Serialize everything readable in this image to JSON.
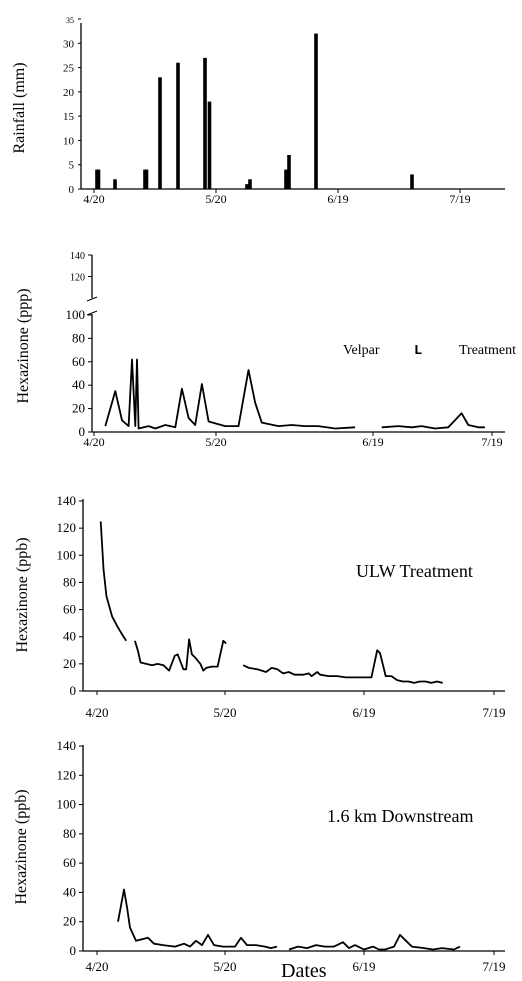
{
  "chart_data": [
    {
      "type": "bar",
      "ylabel": "Rainfall (mm)",
      "xticks": [
        "4/20",
        "5/20",
        "6/19",
        "7/19"
      ],
      "ylim": [
        0,
        35
      ],
      "yticks": [
        0,
        5,
        10,
        15,
        20,
        25,
        30,
        35
      ],
      "series": [
        {
          "values": [
            {
              "x": 1,
              "y": 4
            },
            {
              "x": 1.5,
              "y": 4
            },
            {
              "x": 7,
              "y": 2
            },
            {
              "x": 17,
              "y": 4
            },
            {
              "x": 17.5,
              "y": 4
            },
            {
              "x": 22,
              "y": 23
            },
            {
              "x": 28,
              "y": 26
            },
            {
              "x": 37,
              "y": 27
            },
            {
              "x": 38.5,
              "y": 18
            },
            {
              "x": 51,
              "y": 1
            },
            {
              "x": 52,
              "y": 2
            },
            {
              "x": 64,
              "y": 4
            },
            {
              "x": 65,
              "y": 7
            },
            {
              "x": 74,
              "y": 32
            },
            {
              "x": 106,
              "y": 3
            }
          ]
        }
      ]
    },
    {
      "type": "line",
      "ylabel": "Hexazinone (ppb)",
      "ylabel_display": "Hexazinone (ppp)",
      "annotation": [
        "Velpar",
        "L",
        "Treatment"
      ],
      "xticks": [
        "4/20",
        "5/20",
        "6/19",
        "7/19"
      ],
      "ylim": [
        0,
        140
      ],
      "yticks_lower": [
        0,
        20,
        40,
        60,
        80,
        100
      ],
      "yticks_upper": [
        120,
        140
      ],
      "series": [
        {
          "segments": [
            [
              [
                4,
                5
              ],
              [
                7,
                35
              ],
              [
                9,
                10
              ],
              [
                11,
                5
              ],
              [
                12,
                62
              ],
              [
                13,
                5
              ],
              [
                13.5,
                62
              ],
              [
                14,
                3
              ],
              [
                17,
                5
              ],
              [
                19,
                3
              ],
              [
                22,
                6
              ],
              [
                25,
                4
              ],
              [
                27,
                37
              ],
              [
                29,
                12
              ],
              [
                31,
                6
              ],
              [
                33,
                41
              ],
              [
                35,
                9
              ],
              [
                40,
                5
              ],
              [
                44,
                5
              ],
              [
                47,
                53
              ],
              [
                49,
                25
              ],
              [
                51,
                8
              ],
              [
                56,
                5
              ],
              [
                60,
                6
              ],
              [
                64,
                5
              ],
              [
                68,
                5
              ],
              [
                73,
                3
              ],
              [
                79,
                4
              ]
            ],
            [
              [
                87,
                4
              ],
              [
                92,
                5
              ],
              [
                96,
                4
              ],
              [
                99,
                5
              ],
              [
                103,
                3
              ],
              [
                107,
                4
              ],
              [
                111,
                16
              ],
              [
                113,
                6
              ],
              [
                116,
                4
              ],
              [
                118,
                4
              ]
            ]
          ]
        }
      ]
    },
    {
      "type": "line",
      "ylabel": "Hexazinone (ppb)",
      "annotation": "ULW Treatment",
      "xticks": [
        "4/20",
        "5/20",
        "6/19",
        "7/19"
      ],
      "ylim": [
        0,
        140
      ],
      "yticks": [
        0,
        20,
        40,
        60,
        80,
        100,
        120,
        140
      ],
      "series": [
        {
          "segments": [
            [
              [
                2,
                125
              ],
              [
                3,
                90
              ],
              [
                4,
                70
              ],
              [
                6,
                55
              ],
              [
                8,
                47
              ],
              [
                10,
                40
              ],
              [
                11,
                37
              ]
            ],
            [
              [
                14,
                37
              ],
              [
                15,
                30
              ],
              [
                16,
                21
              ],
              [
                18,
                20
              ],
              [
                20,
                19
              ],
              [
                22,
                20
              ],
              [
                24,
                19
              ],
              [
                26,
                15
              ],
              [
                28,
                26
              ],
              [
                29,
                27
              ],
              [
                31,
                16
              ],
              [
                32,
                16
              ],
              [
                33,
                38
              ],
              [
                34,
                27
              ],
              [
                35,
                25
              ],
              [
                37,
                20
              ],
              [
                38,
                15
              ],
              [
                39,
                17
              ],
              [
                41,
                18
              ],
              [
                43,
                18
              ],
              [
                45,
                37
              ],
              [
                46,
                35
              ]
            ],
            [
              [
                52,
                19
              ],
              [
                54,
                17
              ],
              [
                57,
                16
              ],
              [
                60,
                14
              ],
              [
                62,
                17
              ],
              [
                64,
                16
              ],
              [
                66,
                13
              ],
              [
                68,
                14
              ],
              [
                70,
                12
              ],
              [
                73,
                12
              ],
              [
                75,
                13
              ],
              [
                76,
                11
              ],
              [
                78,
                14
              ],
              [
                79,
                12
              ],
              [
                82,
                11
              ],
              [
                85,
                11
              ],
              [
                88,
                10
              ],
              [
                91,
                10
              ],
              [
                94,
                10
              ],
              [
                97,
                10
              ],
              [
                99,
                30
              ],
              [
                100,
                28
              ],
              [
                102,
                11
              ],
              [
                104,
                11
              ],
              [
                106,
                8
              ],
              [
                108,
                7
              ],
              [
                110,
                7
              ],
              [
                112,
                6
              ],
              [
                114,
                7
              ],
              [
                116,
                7
              ],
              [
                118,
                6
              ],
              [
                120,
                7
              ],
              [
                122,
                6
              ]
            ]
          ]
        }
      ]
    },
    {
      "type": "line",
      "xlabel": "Dates",
      "ylabel": "Hexazinone (ppb)",
      "annotation": "1.6 km Downstream",
      "xticks": [
        "4/20",
        "5/20",
        "6/19",
        "7/19"
      ],
      "ylim": [
        0,
        140
      ],
      "yticks": [
        0,
        20,
        40,
        60,
        80,
        100,
        120,
        140
      ],
      "series": [
        {
          "segments": [
            [
              [
                5,
                20
              ],
              [
                7,
                42
              ],
              [
                8,
                30
              ],
              [
                9,
                16
              ],
              [
                11,
                7
              ],
              [
                13,
                8
              ],
              [
                15,
                9
              ],
              [
                17,
                5
              ],
              [
                20,
                4
              ],
              [
                24,
                3
              ],
              [
                27,
                5
              ],
              [
                29,
                3
              ],
              [
                31,
                7
              ],
              [
                33,
                4
              ],
              [
                35,
                11
              ],
              [
                37,
                4
              ],
              [
                40,
                3
              ],
              [
                44,
                3
              ],
              [
                46,
                9
              ],
              [
                48,
                4
              ],
              [
                51,
                4
              ],
              [
                54,
                3
              ],
              [
                56,
                2
              ],
              [
                58,
                3
              ]
            ],
            [
              [
                62,
                1
              ],
              [
                65,
                3
              ],
              [
                68,
                2
              ],
              [
                71,
                4
              ],
              [
                74,
                3
              ],
              [
                77,
                3
              ],
              [
                80,
                6
              ],
              [
                82,
                2
              ],
              [
                84,
                4
              ],
              [
                87,
                1
              ],
              [
                90,
                3
              ],
              [
                92,
                1
              ],
              [
                94,
                1
              ],
              [
                97,
                3
              ],
              [
                99,
                11
              ],
              [
                101,
                7
              ],
              [
                103,
                3
              ],
              [
                107,
                2
              ],
              [
                110,
                1
              ],
              [
                113,
                2
              ],
              [
                117,
                1
              ],
              [
                119,
                3
              ]
            ]
          ]
        }
      ]
    }
  ]
}
